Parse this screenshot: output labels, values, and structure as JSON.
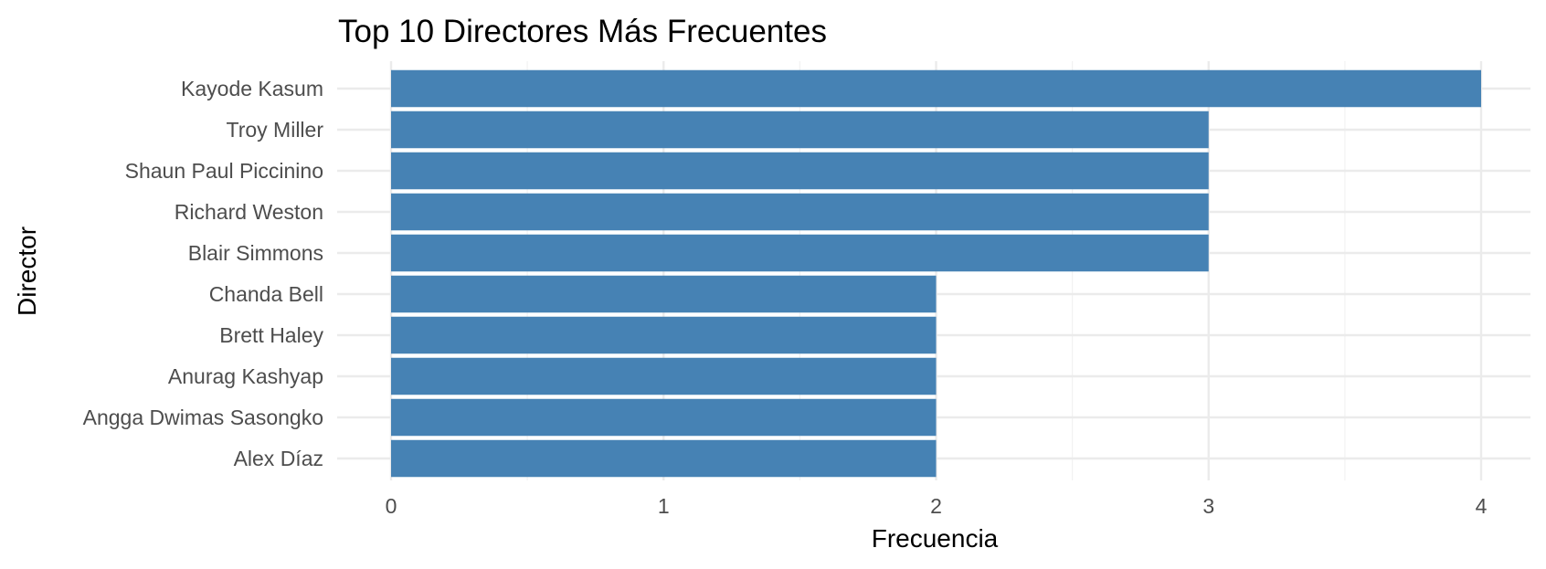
{
  "chart_data": {
    "type": "bar",
    "orientation": "horizontal",
    "title": "Top 10 Directores Más Frecuentes",
    "xlabel": "Frecuencia",
    "ylabel": "Director",
    "categories": [
      "Kayode Kasum",
      "Troy Miller",
      "Shaun Paul Piccinino",
      "Richard Weston",
      "Blair Simmons",
      "Chanda Bell",
      "Brett Haley",
      "Anurag Kashyap",
      "Angga Dwimas Sasongko",
      "Alex Díaz"
    ],
    "values": [
      4,
      3,
      3,
      3,
      3,
      2,
      2,
      2,
      2,
      2
    ],
    "xlim": [
      0,
      4
    ],
    "xticks": [
      "0",
      "1",
      "2",
      "3",
      "4"
    ],
    "grid": true,
    "bar_color": "#4682B4"
  }
}
